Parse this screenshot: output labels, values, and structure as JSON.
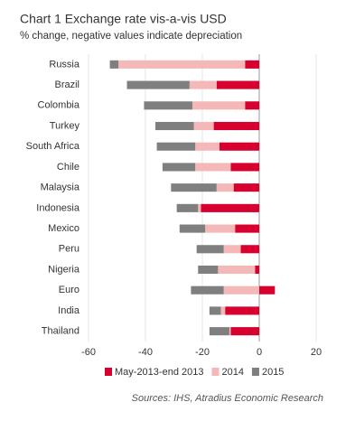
{
  "chart_data": {
    "type": "stacked-bar-horizontal",
    "title": "Chart 1 Exchange rate vis-a-vis USD",
    "subtitle": "% change, negative values indicate depreciation",
    "source": "Sources: IHS, Atradius Economic Research",
    "categories": [
      "Russia",
      "Brazil",
      "Colombia",
      "Turkey",
      "South Africa",
      "Chile",
      "Malaysia",
      "Indonesia",
      "Mexico",
      "Peru",
      "Nigeria",
      "Euro",
      "India",
      "Thailand"
    ],
    "series": [
      {
        "name": "May-2013-end 2013",
        "color": "#d7002f",
        "values": [
          -5,
          -15,
          -5,
          -16,
          -14,
          -10,
          -9,
          -20.5,
          -8.5,
          -6.5,
          -1.5,
          5.5,
          -12,
          -10
        ]
      },
      {
        "name": "2014",
        "color": "#f4b8b8",
        "values": [
          -44.5,
          -9.5,
          -18.5,
          -7,
          -8.5,
          -12.5,
          -6,
          -1,
          -10.5,
          -6,
          -13,
          -12.5,
          -1.5,
          -0.5
        ]
      },
      {
        "name": "2015",
        "color": "#7f7f7f",
        "values": [
          -3,
          -22,
          -17,
          -13.5,
          -13.5,
          -11.5,
          -16,
          -7.5,
          -9,
          -9.5,
          -7,
          -11.5,
          -4,
          -7
        ]
      }
    ],
    "xlim": [
      -60,
      20
    ],
    "xticks": [
      -60,
      -40,
      -20,
      0,
      20
    ],
    "grid": true
  }
}
